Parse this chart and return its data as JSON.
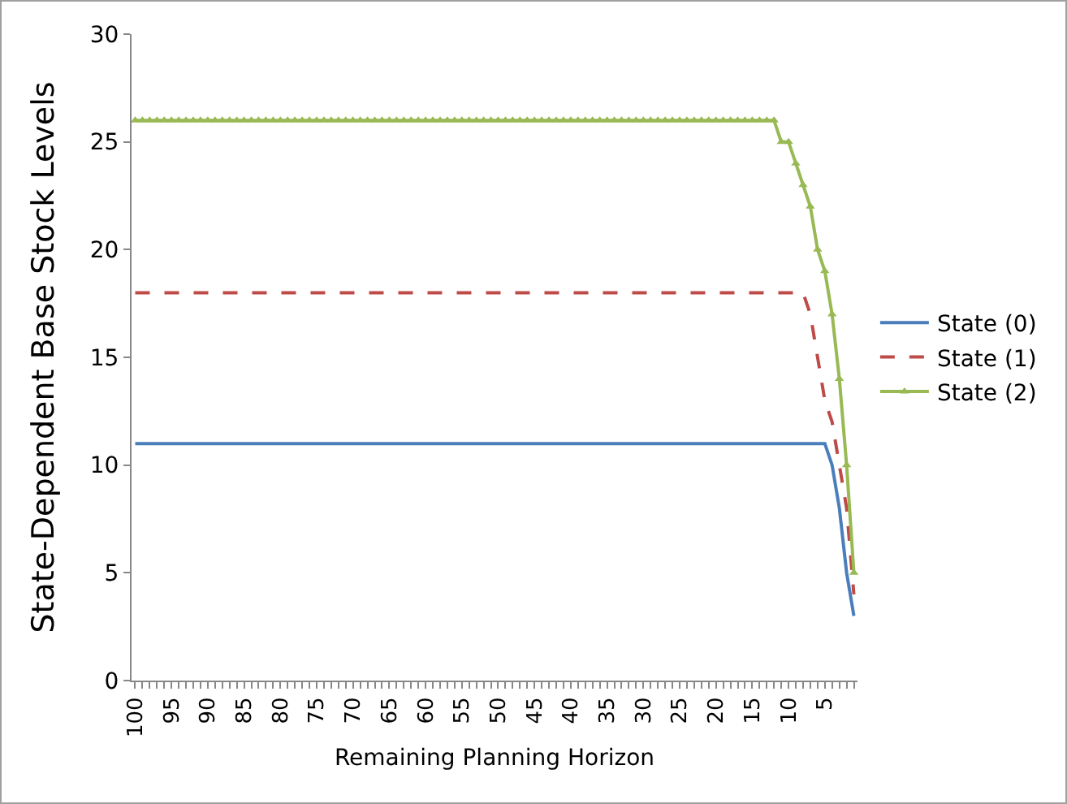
{
  "chart_data": {
    "type": "line",
    "xlabel": "Remaining Planning Horizon",
    "ylabel": "State-Dependent Base Stock Levels",
    "categories": [
      "100",
      null,
      null,
      null,
      null,
      "95",
      null,
      null,
      null,
      null,
      "90",
      null,
      null,
      null,
      null,
      "85",
      null,
      null,
      null,
      null,
      "80",
      null,
      null,
      null,
      null,
      "75",
      null,
      null,
      null,
      null,
      "70",
      null,
      null,
      null,
      null,
      "65",
      null,
      null,
      null,
      null,
      "60",
      null,
      null,
      null,
      null,
      "55",
      null,
      null,
      null,
      null,
      "50",
      null,
      null,
      null,
      null,
      "45",
      null,
      null,
      null,
      null,
      "40",
      null,
      null,
      null,
      null,
      "35",
      null,
      null,
      null,
      null,
      "30",
      null,
      null,
      null,
      null,
      "25",
      null,
      null,
      null,
      null,
      "20",
      null,
      null,
      null,
      null,
      "15",
      null,
      null,
      null,
      null,
      "10",
      null,
      null,
      null,
      null,
      "5",
      null,
      null,
      null,
      null
    ],
    "ylim": [
      0,
      30
    ],
    "yticks": [
      0,
      5,
      10,
      15,
      20,
      25,
      30
    ],
    "grid": false,
    "legend": "right",
    "series": [
      {
        "name": "State (0)",
        "color": "#4a7ebb",
        "line_style": "solid",
        "marker": "none",
        "values": [
          11,
          11,
          11,
          11,
          11,
          11,
          11,
          11,
          11,
          11,
          11,
          11,
          11,
          11,
          11,
          11,
          11,
          11,
          11,
          11,
          11,
          11,
          11,
          11,
          11,
          11,
          11,
          11,
          11,
          11,
          11,
          11,
          11,
          11,
          11,
          11,
          11,
          11,
          11,
          11,
          11,
          11,
          11,
          11,
          11,
          11,
          11,
          11,
          11,
          11,
          11,
          11,
          11,
          11,
          11,
          11,
          11,
          11,
          11,
          11,
          11,
          11,
          11,
          11,
          11,
          11,
          11,
          11,
          11,
          11,
          11,
          11,
          11,
          11,
          11,
          11,
          11,
          11,
          11,
          11,
          11,
          11,
          11,
          11,
          11,
          11,
          11,
          11,
          11,
          11,
          11,
          11,
          11,
          11,
          11,
          11,
          10,
          8,
          5,
          3
        ]
      },
      {
        "name": "State (1)",
        "color": "#be4b48",
        "line_style": "dashed",
        "marker": "none",
        "values": [
          18,
          18,
          18,
          18,
          18,
          18,
          18,
          18,
          18,
          18,
          18,
          18,
          18,
          18,
          18,
          18,
          18,
          18,
          18,
          18,
          18,
          18,
          18,
          18,
          18,
          18,
          18,
          18,
          18,
          18,
          18,
          18,
          18,
          18,
          18,
          18,
          18,
          18,
          18,
          18,
          18,
          18,
          18,
          18,
          18,
          18,
          18,
          18,
          18,
          18,
          18,
          18,
          18,
          18,
          18,
          18,
          18,
          18,
          18,
          18,
          18,
          18,
          18,
          18,
          18,
          18,
          18,
          18,
          18,
          18,
          18,
          18,
          18,
          18,
          18,
          18,
          18,
          18,
          18,
          18,
          18,
          18,
          18,
          18,
          18,
          18,
          18,
          18,
          18,
          18,
          18,
          18,
          18,
          17,
          15,
          13,
          12,
          10,
          8,
          4
        ]
      },
      {
        "name": "State (2)",
        "color": "#98b954",
        "line_style": "solid",
        "marker": "triangle",
        "values": [
          26,
          26,
          26,
          26,
          26,
          26,
          26,
          26,
          26,
          26,
          26,
          26,
          26,
          26,
          26,
          26,
          26,
          26,
          26,
          26,
          26,
          26,
          26,
          26,
          26,
          26,
          26,
          26,
          26,
          26,
          26,
          26,
          26,
          26,
          26,
          26,
          26,
          26,
          26,
          26,
          26,
          26,
          26,
          26,
          26,
          26,
          26,
          26,
          26,
          26,
          26,
          26,
          26,
          26,
          26,
          26,
          26,
          26,
          26,
          26,
          26,
          26,
          26,
          26,
          26,
          26,
          26,
          26,
          26,
          26,
          26,
          26,
          26,
          26,
          26,
          26,
          26,
          26,
          26,
          26,
          26,
          26,
          26,
          26,
          26,
          26,
          26,
          26,
          26,
          25,
          25,
          24,
          23,
          22,
          20,
          19,
          17,
          14,
          10,
          5
        ]
      }
    ]
  }
}
